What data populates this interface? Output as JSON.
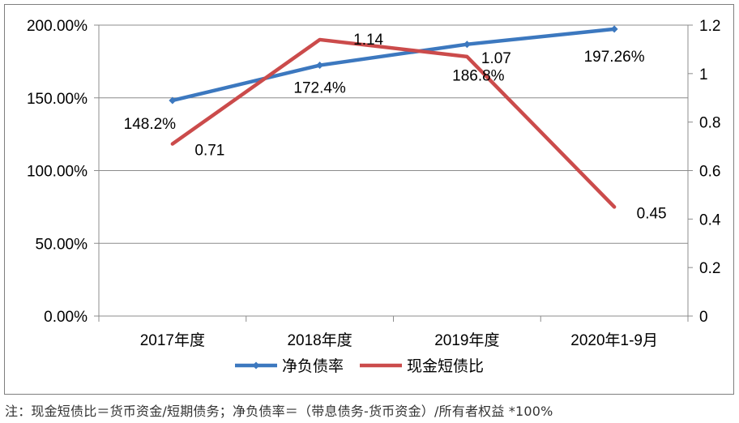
{
  "chart_data": {
    "type": "line",
    "categories": [
      "2017年度",
      "2018年度",
      "2019年度",
      "2020年1-9月"
    ],
    "series": [
      {
        "name": "净负债率",
        "axis": "left",
        "color": "#3c78bf",
        "marker": "diamond",
        "values": [
          148.2,
          172.4,
          186.8,
          197.26
        ],
        "labels": [
          "148.2%",
          "172.4%",
          "186.8%",
          "197.26%"
        ]
      },
      {
        "name": "现金短债比",
        "axis": "right",
        "color": "#cb4b4b",
        "marker": "none",
        "values": [
          0.71,
          1.14,
          1.07,
          0.45
        ],
        "labels": [
          "0.71",
          "1.14",
          "1.07",
          "0.45"
        ]
      }
    ],
    "y_left": {
      "range": [
        0,
        200
      ],
      "ticks": [
        0,
        50,
        100,
        150,
        200
      ],
      "tick_labels": [
        "0.00%",
        "50.00%",
        "100.00%",
        "150.00%",
        "200.00%"
      ]
    },
    "y_right": {
      "range": [
        0,
        1.2
      ],
      "ticks": [
        0,
        0.2,
        0.4,
        0.6,
        0.8,
        1,
        1.2
      ],
      "tick_labels": [
        "0",
        "0.2",
        "0.4",
        "0.6",
        "0.8",
        "1",
        "1.2"
      ]
    },
    "grid": "horizontal",
    "legend_position": "bottom"
  },
  "footnote": "注：现金短债比＝货币资金/短期债务；净负债率＝（带息债务-货币资金）/所有者权益 *100%"
}
